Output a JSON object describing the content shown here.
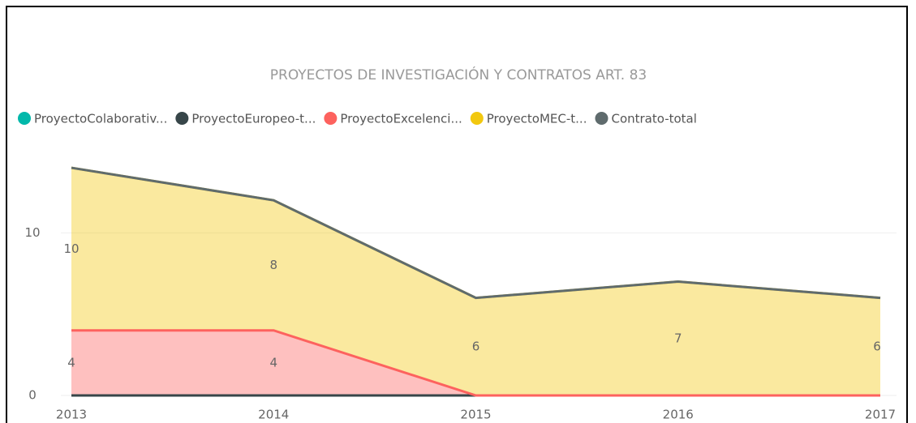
{
  "chart_data": {
    "type": "stacked_area",
    "title": "PROYECTOS DE INVESTIGACIÓN Y CONTRATOS ART. 83",
    "categories": [
      "2013",
      "2014",
      "2015",
      "2016",
      "2017"
    ],
    "series": [
      {
        "name": "ProyectoColaborativ...",
        "color": "#01B8AA",
        "values": [
          0,
          0,
          0,
          0,
          0
        ]
      },
      {
        "name": "ProyectoEuropeo-t...",
        "color": "#374649",
        "values": [
          0,
          0,
          0,
          0,
          0
        ]
      },
      {
        "name": "ProyectoExcelenci...",
        "color": "#FD625E",
        "values": [
          4,
          4,
          0,
          0,
          0
        ]
      },
      {
        "name": "ProyectoMEC-t...",
        "color": "#F2C80F",
        "values": [
          10,
          8,
          6,
          7,
          6
        ]
      },
      {
        "name": "Contrato-total",
        "color": "#5F6B6D",
        "values": [
          0,
          0,
          0,
          0,
          0
        ]
      }
    ],
    "ylim": [
      0,
      15
    ],
    "yticks": [
      0,
      10
    ],
    "grid": true,
    "legend": "top"
  }
}
